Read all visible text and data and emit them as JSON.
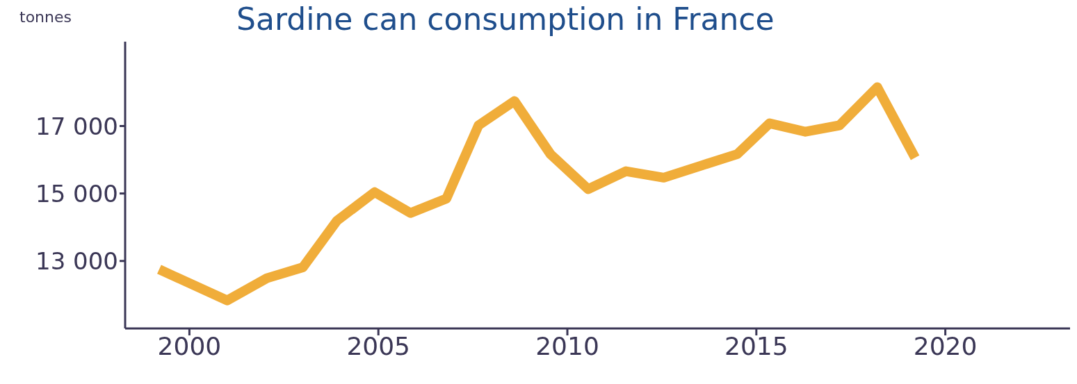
{
  "chart_data": {
    "type": "line",
    "title": "Sardine can consumption in France",
    "ylabel": "tonnes",
    "x": [
      1999.2,
      2001.0,
      2002.05,
      2003.0,
      2003.9,
      2004.9,
      2005.85,
      2006.8,
      2007.65,
      2008.6,
      2009.55,
      2010.55,
      2011.55,
      2012.55,
      2013.55,
      2014.5,
      2015.35,
      2016.3,
      2017.2,
      2018.2,
      2019.2
    ],
    "series": [
      {
        "color": "#f0ad3a",
        "values": [
          12750,
          11830,
          12490,
          12810,
          14190,
          15040,
          14420,
          14850,
          17020,
          17740,
          16170,
          15130,
          15660,
          15470,
          15830,
          16170,
          17080,
          16830,
          17020,
          18150,
          16060
        ]
      }
    ],
    "xlim": [
      1998.3,
      2023.3
    ],
    "xticks": [
      2000,
      2005,
      2010,
      2015,
      2020
    ],
    "ylim": [
      11000,
      19500
    ],
    "yticks": [
      {
        "value": 13000,
        "label": "13 000"
      },
      {
        "value": 15000,
        "label": "15 000"
      },
      {
        "value": 17000,
        "label": "17 000"
      }
    ],
    "grid": false,
    "marker": "none",
    "line_style": "solid"
  }
}
